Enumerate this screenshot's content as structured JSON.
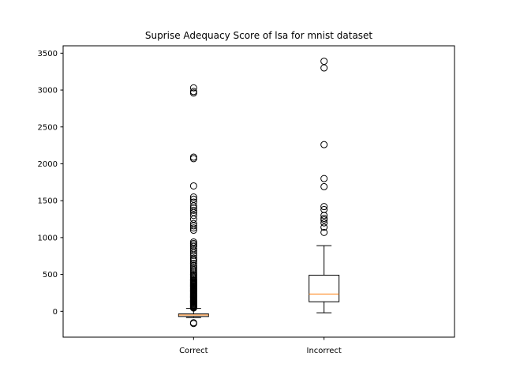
{
  "chart_data": {
    "type": "box",
    "title": "Suprise Adequacy Score of lsa for mnist dataset",
    "xlabel": "",
    "ylabel": "",
    "ylim": [
      -350,
      3600
    ],
    "yticks": [
      0,
      500,
      1000,
      1500,
      2000,
      2500,
      3000,
      3500
    ],
    "categories": [
      "Correct",
      "Incorrect"
    ],
    "grid": false,
    "boxes": [
      {
        "label": "Correct",
        "whisker_low": -85,
        "q1": -70,
        "median": -50,
        "q3": -35,
        "whisker_high": 40,
        "outliers": [
          -165,
          -155,
          45,
          55,
          65,
          75,
          85,
          95,
          105,
          115,
          125,
          135,
          145,
          155,
          165,
          175,
          185,
          195,
          205,
          215,
          225,
          235,
          245,
          255,
          265,
          275,
          285,
          295,
          305,
          315,
          325,
          335,
          345,
          355,
          365,
          375,
          385,
          395,
          405,
          415,
          425,
          440,
          455,
          470,
          485,
          500,
          520,
          540,
          560,
          580,
          600,
          620,
          650,
          680,
          700,
          720,
          760,
          790,
          820,
          850,
          880,
          900,
          920,
          940,
          1100,
          1130,
          1160,
          1190,
          1250,
          1300,
          1340,
          1370,
          1400,
          1430,
          1480,
          1520,
          1550,
          1700,
          2070,
          2090,
          2960,
          2980,
          3030
        ]
      },
      {
        "label": "Incorrect",
        "whisker_low": -20,
        "q1": 130,
        "median": 235,
        "q3": 490,
        "whisker_high": 890,
        "outliers": [
          1070,
          1140,
          1200,
          1240,
          1260,
          1300,
          1380,
          1420,
          1690,
          1800,
          2260,
          3300,
          3390
        ]
      }
    ],
    "colors": {
      "median": "#ff7f0e",
      "box_edge": "#000000",
      "flier_edge": "#000000"
    }
  }
}
